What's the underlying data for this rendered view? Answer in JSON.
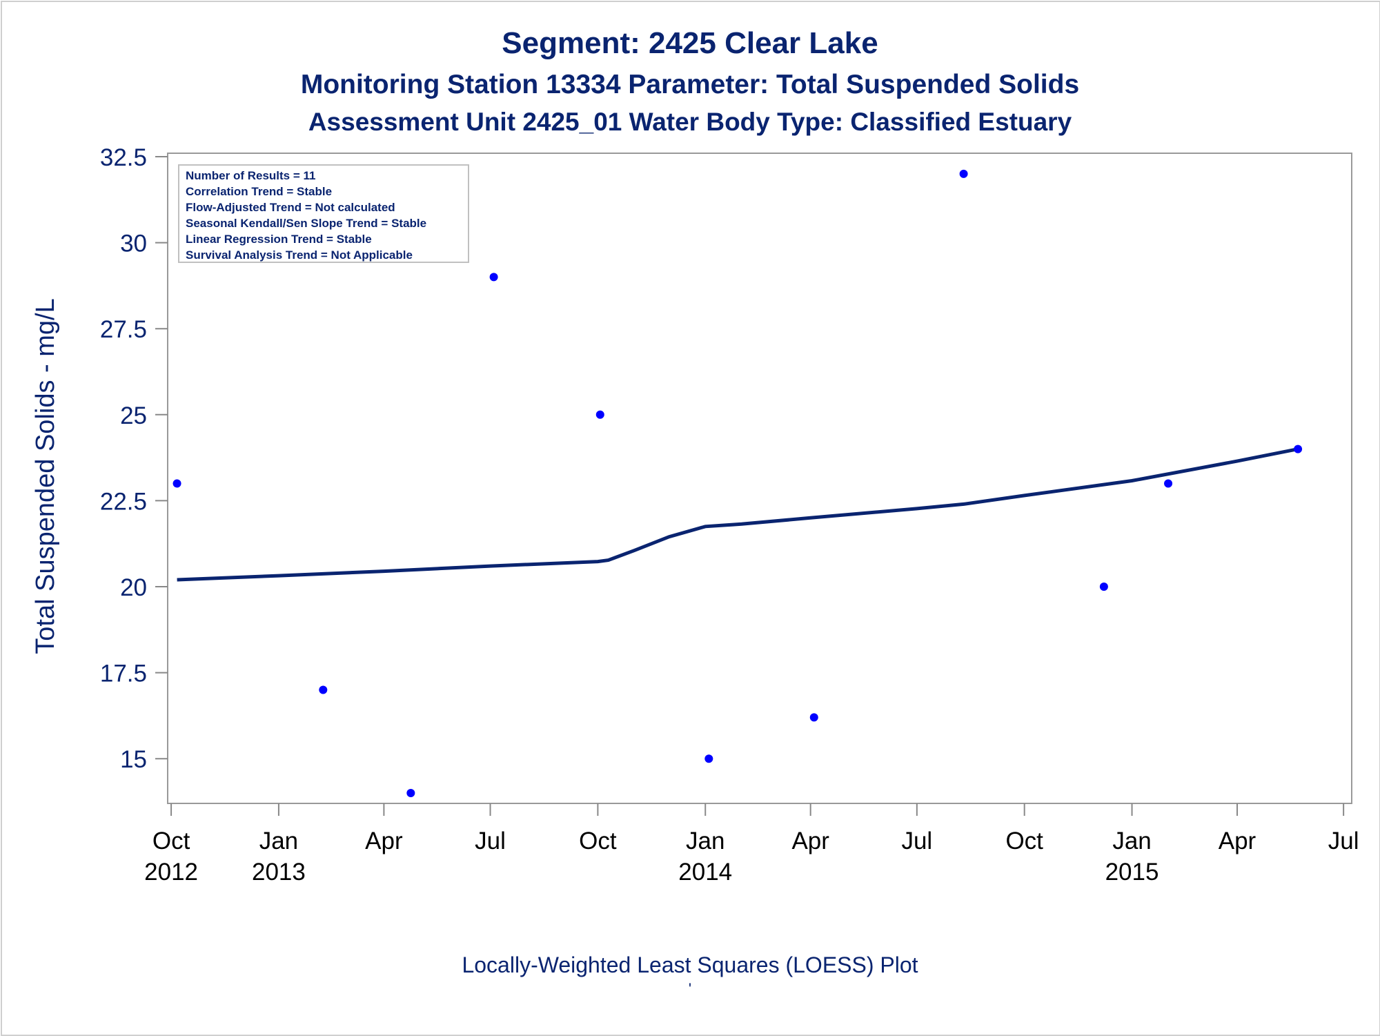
{
  "header": {
    "title": "Segment: 2425  Clear Lake",
    "subtitle1": "Monitoring Station 13334 Parameter: Total Suspended Solids",
    "subtitle2": "Assessment Unit 2425_01   Water Body Type: Classified Estuary"
  },
  "footer": {
    "caption": "Locally-Weighted Least Squares (LOESS) Plot",
    "mark": "'"
  },
  "colors": {
    "text": "#0a2470",
    "points": "#0000ff",
    "loess_line": "#0a2470",
    "axis": "#888888"
  },
  "chart_data": {
    "type": "scatter",
    "ylabel": "Total Suspended Solids - mg/L",
    "xlabel": "",
    "ylim": [
      13.7,
      32.6
    ],
    "xlim": [
      "2012-09-28",
      "2015-07-08"
    ],
    "yticks": [
      15,
      17.5,
      20,
      22.5,
      25,
      27.5,
      30,
      32.5
    ],
    "ytick_labels": [
      "15",
      "17.5",
      "20",
      "22.5",
      "25",
      "27.5",
      "30",
      "32.5"
    ],
    "xticks": [
      {
        "date": "2012-10-01",
        "label": "Oct",
        "year": "2012"
      },
      {
        "date": "2013-01-01",
        "label": "Jan",
        "year": "2013"
      },
      {
        "date": "2013-04-01",
        "label": "Apr",
        "year": ""
      },
      {
        "date": "2013-07-01",
        "label": "Jul",
        "year": ""
      },
      {
        "date": "2013-10-01",
        "label": "Oct",
        "year": ""
      },
      {
        "date": "2014-01-01",
        "label": "Jan",
        "year": "2014"
      },
      {
        "date": "2014-04-01",
        "label": "Apr",
        "year": ""
      },
      {
        "date": "2014-07-01",
        "label": "Jul",
        "year": ""
      },
      {
        "date": "2014-10-01",
        "label": "Oct",
        "year": ""
      },
      {
        "date": "2015-01-01",
        "label": "Jan",
        "year": "2015"
      },
      {
        "date": "2015-04-01",
        "label": "Apr",
        "year": ""
      },
      {
        "date": "2015-07-01",
        "label": "Jul",
        "year": ""
      }
    ],
    "grid": false,
    "inset_text": [
      "Number of Results = 11",
      "Correlation Trend = Stable",
      "Flow-Adjusted Trend = Not calculated",
      "Seasonal Kendall/Sen Slope Trend = Stable",
      "Linear Regression Trend = Stable",
      "Survival Analysis Trend = Not Applicable"
    ],
    "inset_placement": "top-left",
    "points": [
      {
        "x": "2012-10-06",
        "y": 23
      },
      {
        "x": "2013-02-08",
        "y": 17
      },
      {
        "x": "2013-04-24",
        "y": 14
      },
      {
        "x": "2013-07-04",
        "y": 29
      },
      {
        "x": "2013-10-03",
        "y": 25
      },
      {
        "x": "2014-01-04",
        "y": 15
      },
      {
        "x": "2014-04-04",
        "y": 16.2
      },
      {
        "x": "2014-08-10",
        "y": 32
      },
      {
        "x": "2014-12-08",
        "y": 20
      },
      {
        "x": "2015-02-01",
        "y": 23
      },
      {
        "x": "2015-05-23",
        "y": 24
      }
    ],
    "loess": [
      {
        "x": "2012-10-06",
        "y": 20.2
      },
      {
        "x": "2013-01-01",
        "y": 20.32
      },
      {
        "x": "2013-04-01",
        "y": 20.45
      },
      {
        "x": "2013-07-01",
        "y": 20.6
      },
      {
        "x": "2013-10-01",
        "y": 20.73
      },
      {
        "x": "2013-10-10",
        "y": 20.77
      },
      {
        "x": "2013-11-01",
        "y": 21.05
      },
      {
        "x": "2013-12-01",
        "y": 21.45
      },
      {
        "x": "2014-01-01",
        "y": 21.75
      },
      {
        "x": "2014-02-01",
        "y": 21.82
      },
      {
        "x": "2014-04-01",
        "y": 22.0
      },
      {
        "x": "2014-07-01",
        "y": 22.27
      },
      {
        "x": "2014-08-10",
        "y": 22.4
      },
      {
        "x": "2014-10-01",
        "y": 22.65
      },
      {
        "x": "2015-01-01",
        "y": 23.08
      },
      {
        "x": "2015-04-01",
        "y": 23.65
      },
      {
        "x": "2015-05-23",
        "y": 24.0
      }
    ]
  }
}
